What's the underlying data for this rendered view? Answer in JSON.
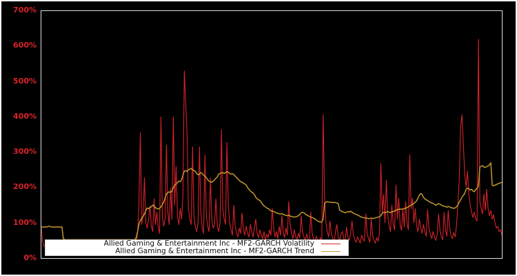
{
  "figure": {
    "background_color": "#000000",
    "frame_color": "#ffffff",
    "spine_color": "#e2e2e2",
    "tick_label_color": "#d8232a"
  },
  "legend": {
    "background": "#ffffff",
    "entries": [
      {
        "label": "Allied Gaming & Entertainment Inc - MF2-GARCH Volatility",
        "color": "#d8232a"
      },
      {
        "label": "Allied Gaming & Entertainment Inc - MF2-GARCH Trend",
        "color": "#c49b2b"
      }
    ]
  },
  "chart_data": {
    "type": "line",
    "title": "",
    "xlabel": "",
    "ylabel": "",
    "x_tick_labels": [],
    "y_tick_labels": [
      "0%",
      "100%",
      "200%",
      "300%",
      "400%",
      "500%",
      "600%",
      "700%"
    ],
    "ylim": [
      0,
      700
    ],
    "y_unit": "percent",
    "grid": false,
    "legend_position": "lower-center-left",
    "background": "black",
    "x_sampling": {
      "points": 336,
      "note": "evenly spaced observations, no x tick labels visible"
    },
    "series": [
      {
        "name": "Allied Gaming & Entertainment Inc - MF2-GARCH Volatility",
        "color": "#d8232a",
        "line_width": 1.1,
        "values_pct": [
          84,
          45,
          33,
          35,
          29,
          27,
          33,
          26,
          38,
          31,
          24,
          36,
          42,
          28,
          25,
          34,
          39,
          27,
          31,
          45,
          33,
          26,
          30,
          37,
          28,
          41,
          32,
          27,
          35,
          30,
          44,
          29,
          33,
          38,
          26,
          31,
          40,
          28,
          34,
          46,
          30,
          27,
          39,
          33,
          29,
          42,
          35,
          28,
          31,
          37,
          44,
          30,
          26,
          34,
          41,
          29,
          36,
          32,
          47,
          38,
          31,
          28,
          35,
          42,
          33,
          29,
          40,
          36,
          30,
          48,
          70,
          150,
          355,
          95,
          120,
          228,
          100,
          85,
          110,
          148,
          90,
          75,
          168,
          95,
          130,
          88,
          70,
          400,
          120,
          90,
          110,
          320,
          130,
          95,
          198,
          110,
          400,
          150,
          260,
          120,
          95,
          140,
          110,
          180,
          530,
          440,
          350,
          140,
          110,
          95,
          315,
          120,
          90,
          75,
          100,
          315,
          130,
          85,
          70,
          293,
          120,
          90,
          75,
          227,
          110,
          85,
          95,
          168,
          90,
          75,
          100,
          364,
          140,
          110,
          95,
          328,
          150,
          100,
          80,
          65,
          150,
          90,
          70,
          60,
          85,
          70,
          128,
          80,
          65,
          90,
          70,
          60,
          95,
          75,
          60,
          85,
          110,
          70,
          58,
          80,
          65,
          55,
          75,
          50,
          68,
          58,
          80,
          65,
          140,
          85,
          60,
          75,
          55,
          90,
          65,
          120,
          70,
          58,
          85,
          65,
          160,
          95,
          70,
          55,
          80,
          62,
          50,
          70,
          58,
          120,
          75,
          60,
          50,
          68,
          55,
          45,
          130,
          70,
          55,
          48,
          62,
          52,
          45,
          58,
          50,
          406,
          180,
          100,
          75,
          60,
          105,
          70,
          55,
          48,
          75,
          95,
          60,
          50,
          68,
          75,
          55,
          48,
          88,
          60,
          50,
          70,
          105,
          65,
          52,
          45,
          60,
          50,
          42,
          65,
          55,
          48,
          125,
          70,
          55,
          45,
          110,
          65,
          50,
          42,
          58,
          48,
          70,
          268,
          130,
          180,
          100,
          221,
          120,
          90,
          75,
          150,
          95,
          80,
          207,
          110,
          170,
          95,
          78,
          140,
          88,
          160,
          100,
          80,
          293,
          140,
          170,
          100,
          140,
          90,
          75,
          110,
          85,
          70,
          95,
          75,
          62,
          137,
          85,
          68,
          55,
          75,
          60,
          50,
          68,
          125,
          78,
          60,
          52,
          130,
          80,
          62,
          135,
          85,
          65,
          55,
          72,
          60,
          90,
          150,
          221,
          371,
          406,
          322,
          240,
          200,
          246,
          180,
          150,
          130,
          115,
          130,
          110,
          105,
          620,
          160,
          140,
          125,
          182,
          135,
          195,
          140,
          120,
          135,
          110,
          123,
          100,
          85,
          90,
          75,
          80,
          65
        ]
      },
      {
        "name": "Allied Gaming & Entertainment Inc - MF2-GARCH Trend",
        "color": "#c49b2b",
        "line_width": 1.5,
        "values_pct": [
          88,
          88,
          88,
          88,
          88,
          90,
          90,
          88,
          88,
          88,
          88,
          88,
          88,
          88,
          88,
          88,
          55,
          52,
          52,
          52,
          52,
          52,
          52,
          52,
          52,
          52,
          52,
          52,
          52,
          52,
          52,
          52,
          52,
          52,
          52,
          52,
          52,
          52,
          52,
          52,
          52,
          52,
          52,
          52,
          52,
          52,
          52,
          52,
          52,
          52,
          52,
          52,
          52,
          52,
          52,
          52,
          52,
          52,
          52,
          52,
          52,
          52,
          52,
          52,
          52,
          52,
          52,
          52,
          52,
          58,
          75,
          95,
          107,
          112,
          118,
          125,
          135,
          142,
          140,
          143,
          145,
          150,
          148,
          143,
          140,
          139,
          141,
          145,
          152,
          158,
          170,
          182,
          185,
          188,
          186,
          190,
          200,
          207,
          210,
          214,
          218,
          216,
          222,
          235,
          246,
          248,
          245,
          250,
          252,
          254,
          250,
          248,
          246,
          240,
          236,
          238,
          242,
          240,
          235,
          232,
          228,
          222,
          218,
          216,
          215,
          218,
          222,
          226,
          230,
          238,
          240,
          241,
          242,
          240,
          242,
          245,
          243,
          240,
          238,
          239,
          237,
          232,
          228,
          224,
          220,
          216,
          215,
          212,
          210,
          207,
          200,
          195,
          190,
          187,
          184,
          180,
          172,
          168,
          165,
          163,
          158,
          152,
          148,
          145,
          142,
          140,
          137,
          134,
          133,
          132,
          130,
          128,
          127,
          126,
          125,
          126,
          124,
          122,
          121,
          120,
          121,
          119,
          118,
          117,
          116,
          117,
          118,
          120,
          124,
          128,
          130,
          128,
          125,
          122,
          120,
          118,
          116,
          115,
          113,
          111,
          108,
          105,
          103,
          102,
          102,
          110,
          155,
          158,
          160,
          159,
          158,
          158,
          157,
          158,
          157,
          156,
          155,
          136,
          133,
          132,
          130,
          128,
          130,
          132,
          130,
          133,
          130,
          127,
          125,
          124,
          122,
          120,
          118,
          116,
          115,
          114,
          114,
          113,
          112,
          112,
          113,
          112,
          113,
          114,
          115,
          116,
          117,
          120,
          127,
          130,
          128,
          130,
          132,
          130,
          129,
          131,
          132,
          133,
          136,
          137,
          138,
          139,
          138,
          139,
          140,
          141,
          143,
          145,
          148,
          150,
          152,
          155,
          158,
          162,
          170,
          178,
          183,
          180,
          172,
          168,
          165,
          163,
          160,
          158,
          156,
          155,
          152,
          150,
          152,
          154,
          153,
          150,
          148,
          147,
          146,
          144,
          146,
          145,
          143,
          142,
          141,
          142,
          145,
          150,
          158,
          165,
          172,
          178,
          183,
          195,
          198,
          196,
          193,
          195,
          190,
          188,
          194,
          198,
          205,
          258,
          260,
          262,
          258,
          257,
          259,
          261,
          264,
          270,
          206,
          205,
          207,
          208,
          210,
          212,
          213,
          215
        ]
      }
    ]
  }
}
